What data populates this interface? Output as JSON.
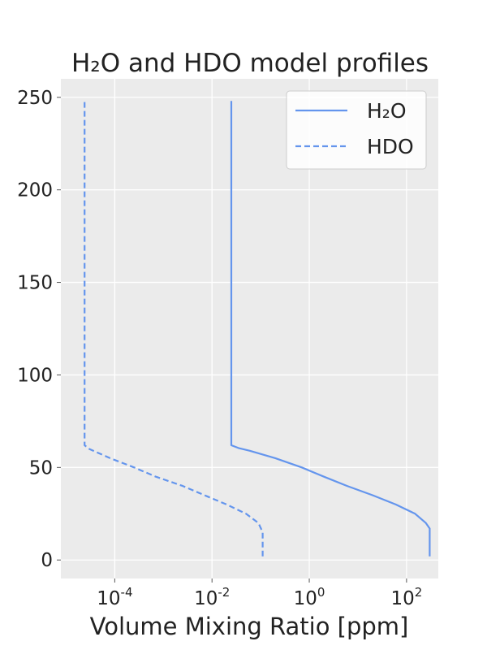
{
  "chart_data": {
    "type": "line",
    "title": "H₂O and HDO model profiles",
    "xlabel": "Volume Mixing Ratio [ppm]",
    "ylabel": "",
    "xscale": "log",
    "xlim": [
      7.8e-06,
      450
    ],
    "ylim": [
      -10,
      260
    ],
    "x_ticks": [
      {
        "value": 0.0001,
        "base": "10",
        "exp": "-4"
      },
      {
        "value": 0.01,
        "base": "10",
        "exp": "-2"
      },
      {
        "value": 1,
        "base": "10",
        "exp": "0"
      },
      {
        "value": 100,
        "base": "10",
        "exp": "2"
      }
    ],
    "y_ticks": [
      0,
      50,
      100,
      150,
      200,
      250
    ],
    "grid": true,
    "legend_position": "top-right",
    "line_color": "#6495ED",
    "background_color": "#EBEBEB",
    "series": [
      {
        "name": "H₂O",
        "style": "solid",
        "points": [
          [
            300,
            2
          ],
          [
            300,
            17
          ],
          [
            250,
            20
          ],
          [
            150,
            25
          ],
          [
            60,
            30
          ],
          [
            20,
            35
          ],
          [
            6,
            40
          ],
          [
            2,
            45
          ],
          [
            0.7,
            50
          ],
          [
            0.2,
            55
          ],
          [
            0.06,
            59
          ],
          [
            0.035,
            60.5
          ],
          [
            0.025,
            62
          ],
          [
            0.025,
            248
          ]
        ]
      },
      {
        "name": "HDO",
        "style": "dashed",
        "points": [
          [
            0.11,
            2
          ],
          [
            0.11,
            15
          ],
          [
            0.09,
            20
          ],
          [
            0.05,
            25
          ],
          [
            0.02,
            30
          ],
          [
            0.007,
            35
          ],
          [
            0.0025,
            40
          ],
          [
            0.0007,
            45
          ],
          [
            0.00025,
            50
          ],
          [
            8e-05,
            55
          ],
          [
            3e-05,
            60
          ],
          [
            2.4e-05,
            62
          ],
          [
            2.4e-05,
            248
          ]
        ]
      }
    ]
  }
}
